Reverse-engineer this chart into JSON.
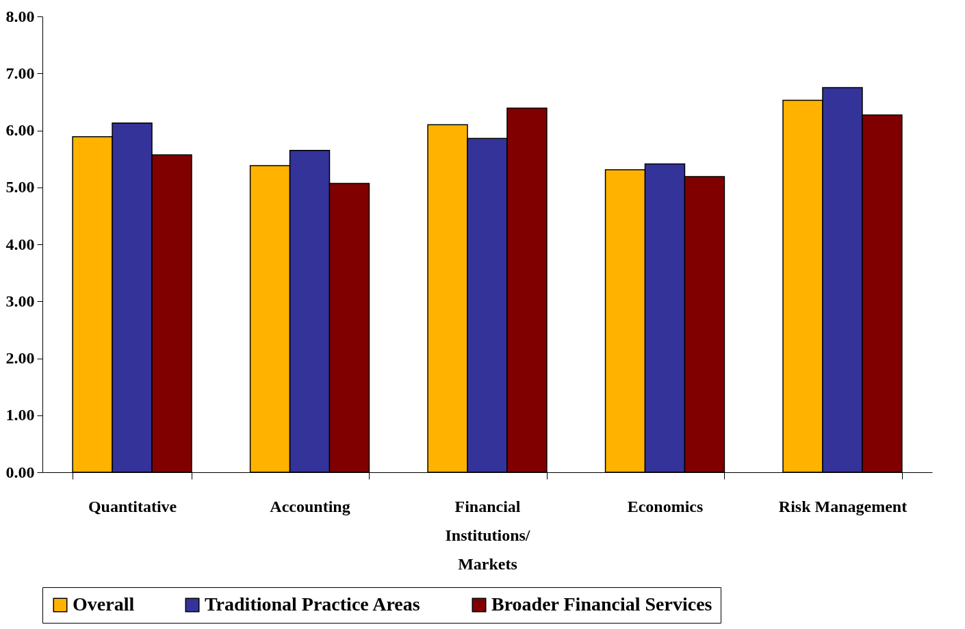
{
  "chart_data": {
    "type": "bar",
    "categories": [
      "Quantitative",
      "Accounting",
      "Financial Institutions/ Markets",
      "Economics",
      "Risk Management"
    ],
    "series": [
      {
        "name": "Overall",
        "color": "#ffb300",
        "values": [
          5.89,
          5.38,
          6.1,
          5.31,
          6.53
        ]
      },
      {
        "name": "Traditional Practice Areas",
        "color": "#333399",
        "values": [
          6.13,
          5.65,
          5.86,
          5.41,
          6.75
        ]
      },
      {
        "name": "Broader Financial Services",
        "color": "#800000",
        "values": [
          5.57,
          5.07,
          6.39,
          5.19,
          6.27
        ]
      }
    ],
    "ylim": [
      0,
      8
    ],
    "yticks": [
      {
        "value": 0,
        "label": "0.00"
      },
      {
        "value": 1,
        "label": "1.00"
      },
      {
        "value": 2,
        "label": "2.00"
      },
      {
        "value": 3,
        "label": "3.00"
      },
      {
        "value": 4,
        "label": "4.00"
      },
      {
        "value": 5,
        "label": "5.00"
      },
      {
        "value": 6,
        "label": "6.00"
      },
      {
        "value": 7,
        "label": "7.00"
      },
      {
        "value": 8,
        "label": "8.00"
      }
    ],
    "grid": false,
    "legend": "bottom"
  }
}
